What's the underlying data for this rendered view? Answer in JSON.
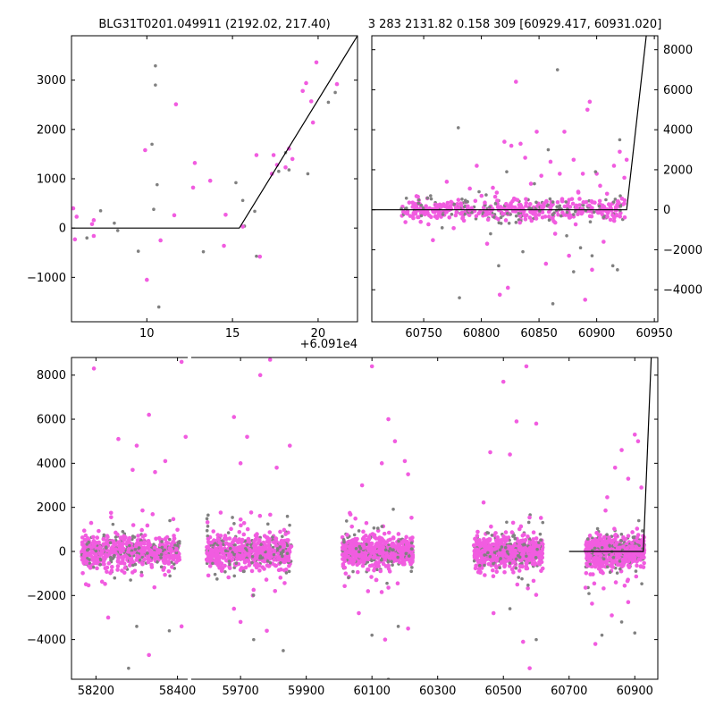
{
  "colors": {
    "magenta": "#f15ce0",
    "gray": "#808080",
    "model": "#000000"
  },
  "chart_data": [
    {
      "type": "scatter",
      "title": "BLG31T0201.049911 (2192.02, 217.40)",
      "offset_label": "+6.091e4",
      "xlim": [
        5.6,
        22.3
      ],
      "ylim": [
        -1900,
        3900
      ],
      "xticks": [
        "10",
        "15",
        "20"
      ],
      "xtick_values": [
        10,
        15,
        20
      ],
      "yticks": [
        "−1000",
        "0",
        "1000",
        "2000",
        "3000"
      ],
      "ytick_values": [
        -1000,
        0,
        1000,
        2000,
        3000
      ],
      "model_line": [
        [
          5.6,
          0
        ],
        [
          15.4,
          0
        ],
        [
          22.3,
          3900
        ]
      ],
      "series": [
        {
          "color": "magenta",
          "points": [
            [
              5.7,
              400
            ],
            [
              5.8,
              -230
            ],
            [
              5.9,
              230
            ],
            [
              6.8,
              80
            ],
            [
              6.9,
              -160
            ],
            [
              6.9,
              160
            ],
            [
              9.9,
              1580
            ],
            [
              10.0,
              -1050
            ],
            [
              10.8,
              -250
            ],
            [
              11.6,
              260
            ],
            [
              11.7,
              2510
            ],
            [
              12.7,
              820
            ],
            [
              12.8,
              1320
            ],
            [
              13.7,
              960
            ],
            [
              14.5,
              -360
            ],
            [
              14.6,
              270
            ],
            [
              15.6,
              30
            ],
            [
              16.4,
              1480
            ],
            [
              16.6,
              -580
            ],
            [
              17.3,
              1100
            ],
            [
              17.4,
              1480
            ],
            [
              17.6,
              1280
            ],
            [
              18.1,
              1230
            ],
            [
              18.3,
              1610
            ],
            [
              18.5,
              1400
            ],
            [
              19.1,
              2780
            ],
            [
              19.3,
              2940
            ],
            [
              19.6,
              2570
            ],
            [
              19.7,
              2140
            ],
            [
              19.9,
              3360
            ],
            [
              21.1,
              2920
            ]
          ]
        },
        {
          "color": "gray",
          "points": [
            [
              6.5,
              -200
            ],
            [
              7.3,
              350
            ],
            [
              8.1,
              100
            ],
            [
              8.3,
              -50
            ],
            [
              9.5,
              -470
            ],
            [
              10.3,
              1700
            ],
            [
              10.4,
              380
            ],
            [
              10.5,
              3290
            ],
            [
              10.5,
              2900
            ],
            [
              10.6,
              880
            ],
            [
              10.7,
              -1600
            ],
            [
              13.3,
              -480
            ],
            [
              15.2,
              920
            ],
            [
              15.6,
              560
            ],
            [
              15.7,
              40
            ],
            [
              16.3,
              340
            ],
            [
              16.4,
              -570
            ],
            [
              17.7,
              1150
            ],
            [
              18.1,
              1530
            ],
            [
              18.3,
              1180
            ],
            [
              19.4,
              1100
            ],
            [
              20.6,
              2550
            ],
            [
              21.0,
              2750
            ]
          ]
        }
      ]
    },
    {
      "type": "scatter",
      "title": "3 283 2131.82 0.158 309 [60929.417, 60931.020]",
      "xlim": [
        60705,
        60953
      ],
      "ylim": [
        -5600,
        8700
      ],
      "xticks": [
        "60750",
        "60800",
        "60850",
        "60900",
        "60950"
      ],
      "xtick_values": [
        60750,
        60800,
        60850,
        60900,
        60950
      ],
      "yticks": [
        "−4000",
        "−2000",
        "0",
        "2000",
        "4000",
        "6000",
        "8000"
      ],
      "ytick_values": [
        -4000,
        -2000,
        0,
        2000,
        4000,
        6000,
        8000
      ],
      "model_line": [
        [
          60705,
          0
        ],
        [
          60926,
          0
        ],
        [
          60943,
          8700
        ]
      ],
      "series": [
        {
          "color": "magenta",
          "points": [
            [
              60741,
              -420
            ],
            [
              60745,
              650
            ],
            [
              60752,
              180
            ],
            [
              60758,
              -1520
            ],
            [
              60764,
              260
            ],
            [
              60770,
              1400
            ],
            [
              60776,
              -920
            ],
            [
              60784,
              -380
            ],
            [
              60790,
              1060
            ],
            [
              60796,
              2200
            ],
            [
              60805,
              -1700
            ],
            [
              60810,
              1100
            ],
            [
              60816,
              -4250
            ],
            [
              60820,
              3400
            ],
            [
              60823,
              -3900
            ],
            [
              60826,
              3200
            ],
            [
              60830,
              6400
            ],
            [
              60834,
              3300
            ],
            [
              60838,
              2600
            ],
            [
              60843,
              1300
            ],
            [
              60848,
              3900
            ],
            [
              60852,
              1700
            ],
            [
              60856,
              -2700
            ],
            [
              60860,
              2400
            ],
            [
              60864,
              -1200
            ],
            [
              60868,
              1800
            ],
            [
              60872,
              3900
            ],
            [
              60876,
              -2300
            ],
            [
              60880,
              2500
            ],
            [
              60884,
              900
            ],
            [
              60888,
              1800
            ],
            [
              60890,
              -4500
            ],
            [
              60892,
              5000
            ],
            [
              60894,
              5400
            ],
            [
              60896,
              -3000
            ],
            [
              60900,
              1800
            ],
            [
              60903,
              1200
            ],
            [
              60906,
              -1600
            ],
            [
              60909,
              800
            ],
            [
              60912,
              -500
            ],
            [
              60915,
              2200
            ],
            [
              60920,
              2900
            ],
            [
              60924,
              1600
            ],
            [
              60926,
              2500
            ]
          ]
        },
        {
          "color": "gray",
          "points": [
            [
              60748,
              -300
            ],
            [
              60756,
              700
            ],
            [
              60766,
              -900
            ],
            [
              60780,
              4100
            ],
            [
              60781,
              -4400
            ],
            [
              60788,
              400
            ],
            [
              60798,
              900
            ],
            [
              60808,
              -1200
            ],
            [
              60815,
              -2800
            ],
            [
              60822,
              1900
            ],
            [
              60836,
              -2100
            ],
            [
              60846,
              1300
            ],
            [
              60858,
              3000
            ],
            [
              60862,
              -4700
            ],
            [
              60866,
              7000
            ],
            [
              60874,
              -1300
            ],
            [
              60880,
              -3100
            ],
            [
              60886,
              -1900
            ],
            [
              60896,
              -2300
            ],
            [
              60899,
              1900
            ],
            [
              60908,
              500
            ],
            [
              60914,
              -2800
            ],
            [
              60918,
              -3000
            ],
            [
              60920,
              3500
            ]
          ]
        }
      ]
    },
    {
      "type": "scatter",
      "title": "",
      "ylim": [
        -5800,
        8800
      ],
      "yticks": [
        "−4000",
        "−2000",
        "0",
        "2000",
        "4000",
        "6000",
        "8000"
      ],
      "ytick_values": [
        -4000,
        -2000,
        0,
        2000,
        4000,
        6000,
        8000
      ],
      "segments": [
        {
          "xlim": [
            58140,
            58425
          ],
          "xticks": [
            "58200",
            "58400"
          ],
          "xtick_values": [
            58200,
            58400
          ]
        },
        {
          "xlim": [
            59550,
            60970
          ],
          "xticks": [
            "59700",
            "59900",
            "60100",
            "60300",
            "60500",
            "60700",
            "60900"
          ],
          "xtick_values": [
            59700,
            59900,
            60100,
            60300,
            60500,
            60700,
            60900
          ]
        }
      ],
      "clusters": [
        {
          "x": [
            58165,
            58405
          ],
          "outliers_up": [
            [
              58195,
              8300
            ],
            [
              58255,
              5100
            ],
            [
              58300,
              4800
            ],
            [
              58330,
              6200
            ],
            [
              58345,
              3600
            ],
            [
              58410,
              8600
            ],
            [
              58420,
              5200
            ],
            [
              58290,
              3700
            ],
            [
              58370,
              4100
            ]
          ],
          "outliers_down": [
            [
              58230,
              -3000
            ],
            [
              58300,
              -3400
            ],
            [
              58330,
              -4700
            ],
            [
              58380,
              -3600
            ],
            [
              58410,
              -3400
            ],
            [
              58280,
              -5300
            ]
          ]
        },
        {
          "x": [
            59595,
            59855
          ],
          "outliers_up": [
            [
              59680,
              6100
            ],
            [
              59760,
              8000
            ],
            [
              59790,
              8700
            ],
            [
              59720,
              5200
            ],
            [
              59850,
              4800
            ],
            [
              59700,
              4000
            ],
            [
              59810,
              3800
            ]
          ],
          "outliers_down": [
            [
              59700,
              -3200
            ],
            [
              59740,
              -4000
            ],
            [
              59780,
              -3600
            ],
            [
              59830,
              -4500
            ],
            [
              59680,
              -2600
            ]
          ]
        },
        {
          "x": [
            60010,
            60225
          ],
          "outliers_up": [
            [
              60070,
              3000
            ],
            [
              60100,
              8400
            ],
            [
              60150,
              6000
            ],
            [
              60170,
              5000
            ],
            [
              60200,
              4100
            ],
            [
              60130,
              4000
            ],
            [
              60210,
              3500
            ]
          ],
          "outliers_down": [
            [
              60060,
              -2800
            ],
            [
              60100,
              -3800
            ],
            [
              60140,
              -4000
            ],
            [
              60180,
              -3400
            ],
            [
              60210,
              -3500
            ],
            [
              60150,
              -5800
            ]
          ]
        },
        {
          "x": [
            60410,
            60620
          ],
          "outliers_up": [
            [
              60460,
              4500
            ],
            [
              60500,
              7700
            ],
            [
              60540,
              5900
            ],
            [
              60570,
              8400
            ],
            [
              60600,
              5800
            ],
            [
              60520,
              4400
            ]
          ],
          "outliers_down": [
            [
              60470,
              -2800
            ],
            [
              60520,
              -2600
            ],
            [
              60560,
              -4100
            ],
            [
              60600,
              -4000
            ],
            [
              60580,
              -5300
            ]
          ]
        },
        {
          "x": [
            60750,
            60930
          ],
          "outliers_up": [
            [
              60840,
              3800
            ],
            [
              60860,
              4600
            ],
            [
              60880,
              3300
            ],
            [
              60900,
              5300
            ],
            [
              60910,
              5000
            ],
            [
              60920,
              2900
            ]
          ],
          "outliers_down": [
            [
              60780,
              -4200
            ],
            [
              60800,
              -3800
            ],
            [
              60830,
              -2900
            ],
            [
              60860,
              -3200
            ],
            [
              60880,
              -2300
            ],
            [
              60900,
              -3700
            ]
          ]
        }
      ],
      "model_line": [
        [
          60700,
          0
        ],
        [
          60926,
          0
        ],
        [
          60950,
          8800
        ]
      ]
    }
  ]
}
